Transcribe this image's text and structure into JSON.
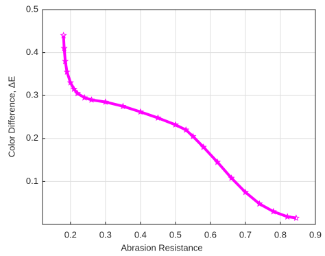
{
  "chart_data": {
    "type": "scatter",
    "x_label": "Abrasion Resistance",
    "y_label": "Color Difference, ΔE",
    "xlim": [
      0.12,
      0.9
    ],
    "ylim": [
      0,
      0.5
    ],
    "xticks": [
      0.2,
      0.3,
      0.4,
      0.5,
      0.6,
      0.7,
      0.8,
      0.9
    ],
    "yticks": [
      0.1,
      0.2,
      0.3,
      0.4,
      0.5
    ],
    "grid": true,
    "series": [
      {
        "color": "#ff00ff",
        "marker": "star",
        "x": [
          0.18,
          0.182,
          0.185,
          0.19,
          0.2,
          0.21,
          0.22,
          0.24,
          0.26,
          0.3,
          0.35,
          0.4,
          0.45,
          0.5,
          0.53,
          0.55,
          0.58,
          0.62,
          0.66,
          0.7,
          0.74,
          0.78,
          0.82,
          0.845
        ],
        "values": [
          0.44,
          0.41,
          0.38,
          0.355,
          0.33,
          0.315,
          0.305,
          0.295,
          0.29,
          0.285,
          0.275,
          0.262,
          0.248,
          0.232,
          0.22,
          0.205,
          0.18,
          0.145,
          0.108,
          0.075,
          0.048,
          0.03,
          0.018,
          0.015
        ]
      }
    ]
  }
}
